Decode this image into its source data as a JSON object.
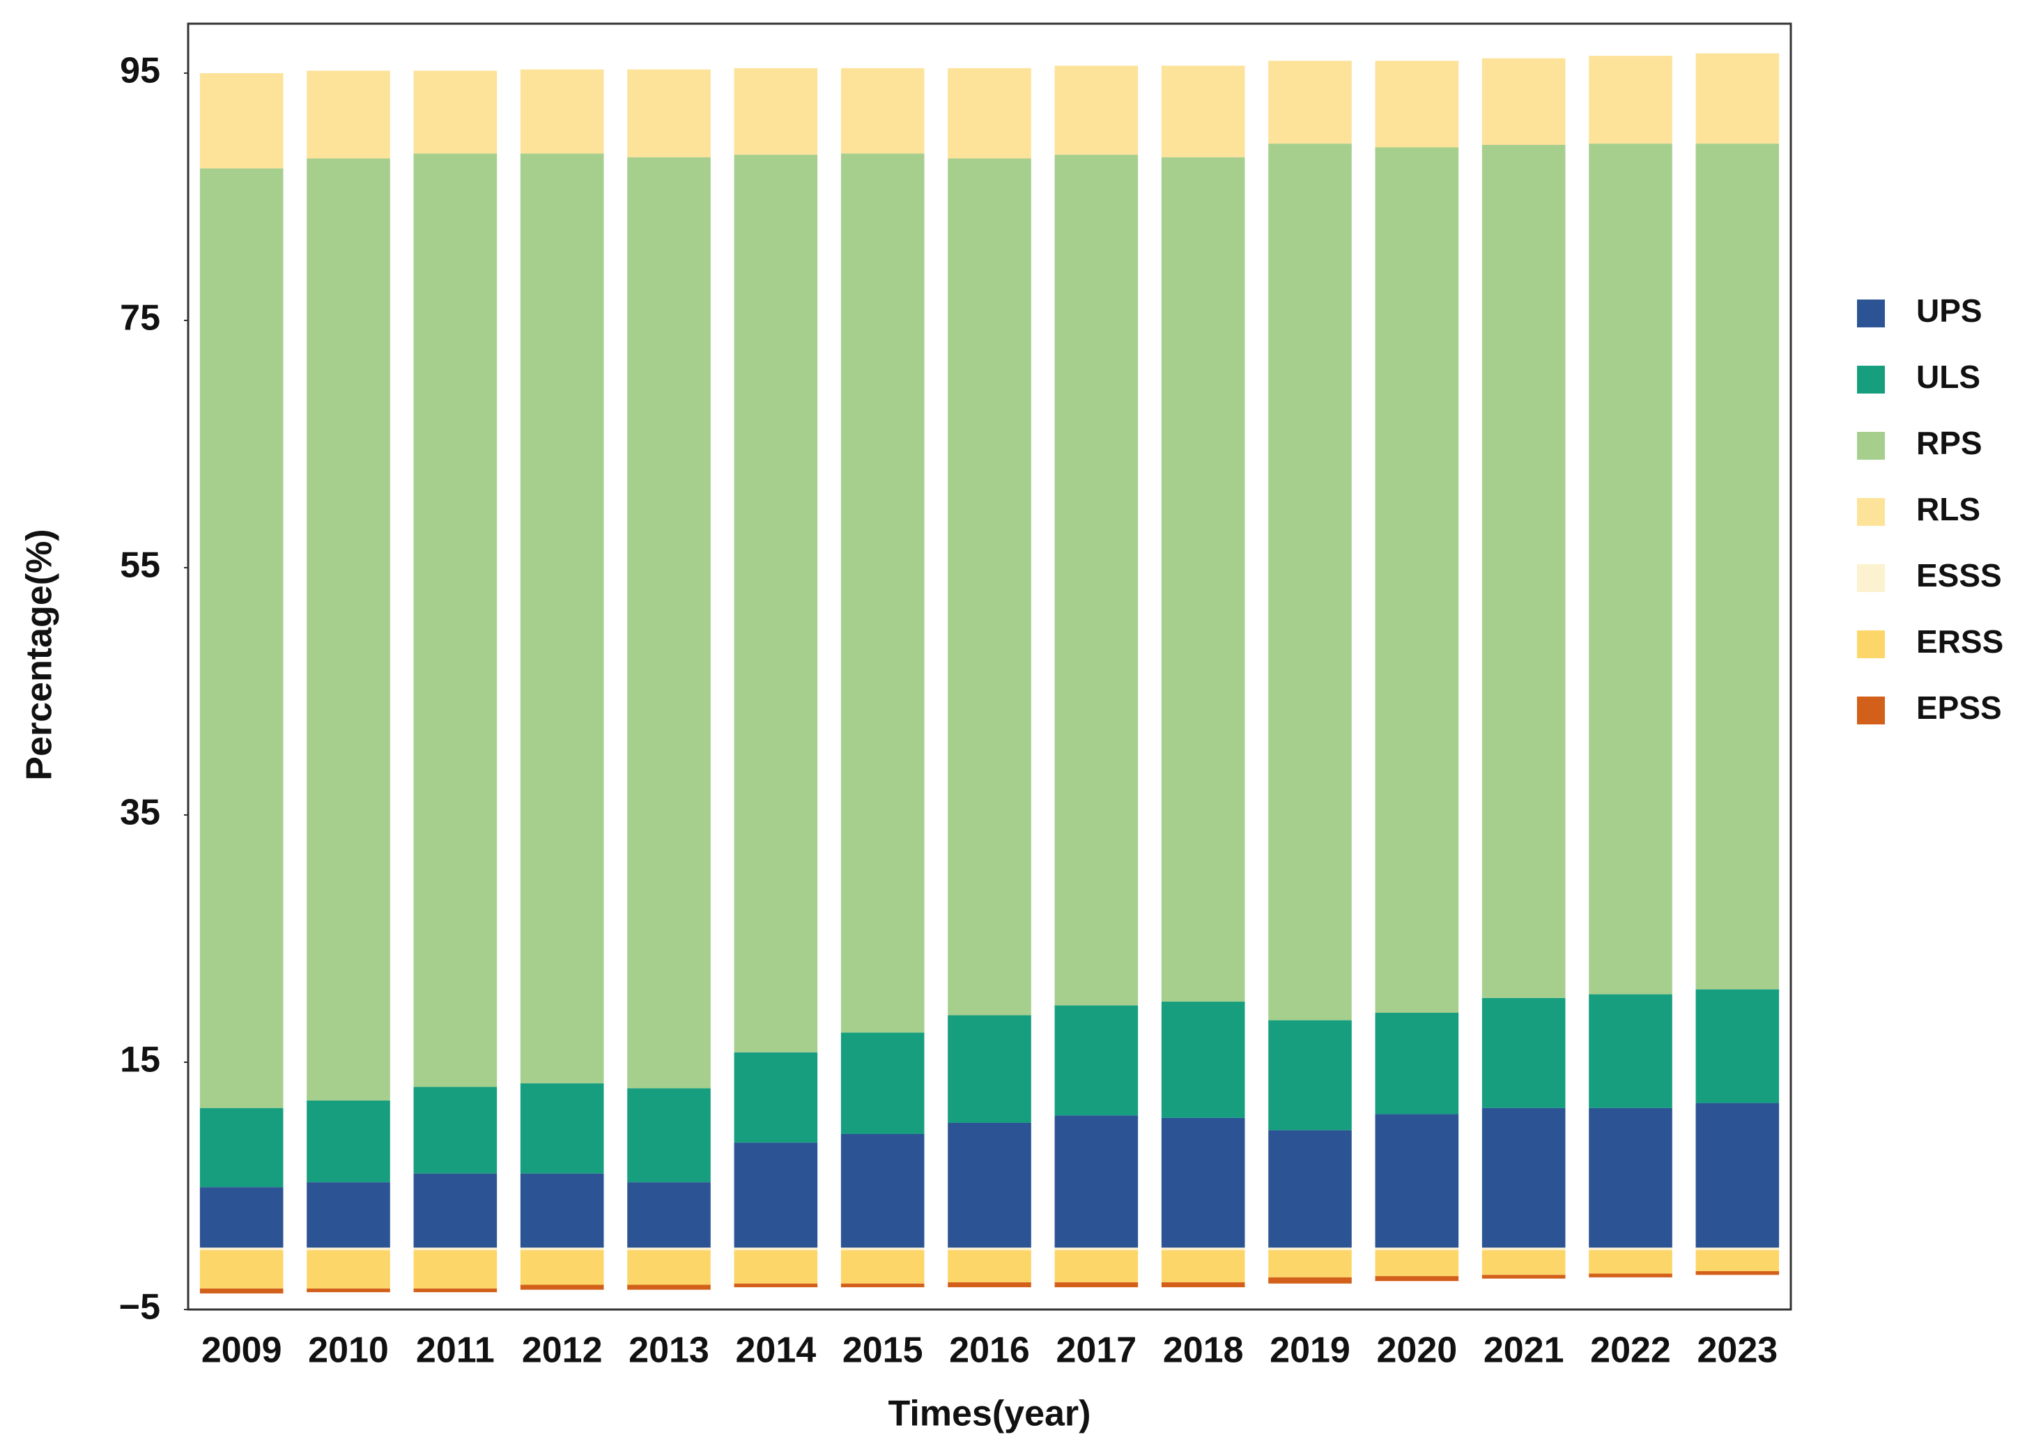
{
  "chart_data": {
    "type": "stacked_bar",
    "x_label": "Times(year)",
    "y_label": "Percentage(%)",
    "categories": [
      "2009",
      "2010",
      "2011",
      "2012",
      "2013",
      "2014",
      "2015",
      "2016",
      "2017",
      "2018",
      "2019",
      "2020",
      "2021",
      "2022",
      "2023"
    ],
    "ylim": [
      -5,
      99
    ],
    "yticks": [
      {
        "value": -5,
        "label": "−5"
      },
      15,
      35,
      55,
      75,
      95
    ],
    "legend": "right",
    "series": [
      {
        "name": "UPS",
        "color": "#2c5495",
        "values": [
          4.9,
          5.3,
          6.0,
          6.0,
          5.3,
          8.5,
          9.2,
          10.1,
          10.7,
          10.5,
          9.5,
          10.8,
          11.3,
          11.3,
          11.7
        ]
      },
      {
        "name": "ULS",
        "color": "#169e7f",
        "values": [
          6.4,
          6.6,
          7.0,
          7.3,
          7.6,
          7.3,
          8.2,
          8.7,
          8.9,
          9.4,
          8.9,
          8.2,
          8.9,
          9.2,
          9.2
        ]
      },
      {
        "name": "RPS",
        "color": "#a6cf8e",
        "values": [
          76.0,
          76.2,
          75.5,
          75.2,
          75.3,
          72.6,
          71.1,
          69.3,
          68.8,
          68.3,
          70.9,
          70.0,
          69.0,
          68.8,
          68.4
        ]
      },
      {
        "name": "RLS",
        "color": "#fde29a",
        "values": [
          7.7,
          7.1,
          6.7,
          6.8,
          7.1,
          7.0,
          6.9,
          7.3,
          7.2,
          7.4,
          6.7,
          7.0,
          7.0,
          7.1,
          7.3
        ]
      },
      {
        "name": "ESSS",
        "color": "#fdf2cf",
        "values": [
          -0.2,
          -0.2,
          -0.2,
          -0.2,
          -0.2,
          -0.2,
          -0.2,
          -0.2,
          -0.2,
          -0.2,
          -0.2,
          -0.2,
          -0.2,
          -0.2,
          -0.2
        ]
      },
      {
        "name": "ERSS",
        "color": "#fdd66a",
        "values": [
          -3.1,
          -3.1,
          -3.1,
          -2.8,
          -2.8,
          -2.7,
          -2.7,
          -2.6,
          -2.6,
          -2.6,
          -2.2,
          -2.1,
          -2.0,
          -1.9,
          -1.7
        ]
      },
      {
        "name": "EPSS",
        "color": "#d2601a",
        "values": [
          -0.4,
          -0.3,
          -0.3,
          -0.4,
          -0.4,
          -0.3,
          -0.3,
          -0.4,
          -0.4,
          -0.4,
          -0.5,
          -0.4,
          -0.3,
          -0.3,
          -0.3
        ]
      }
    ]
  }
}
